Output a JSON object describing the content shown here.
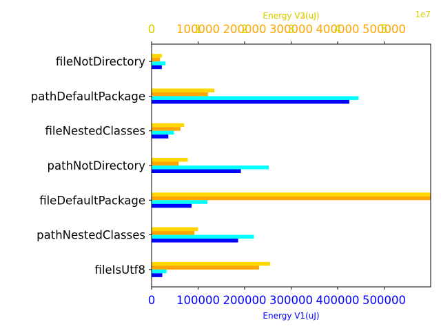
{
  "chart_data": {
    "type": "bar",
    "orientation": "horizontal",
    "categories": [
      "fileNotDirectory",
      "pathDefaultPackage",
      "fileNestedClasses",
      "pathNotDirectory",
      "fileDefaultPackage",
      "pathNestedClasses",
      "fileIsUtf8"
    ],
    "bottom_axis": {
      "label": "Energy V1(uJ)",
      "range": [
        0,
        600000
      ],
      "ticks": [
        0,
        100000,
        200000,
        300000,
        400000,
        500000
      ],
      "tick_labels": [
        "0",
        "100000",
        "200000",
        "300000",
        "400000",
        "500000"
      ],
      "color": "#0000ff",
      "series": [
        {
          "color": "#0000ff",
          "values": [
            22000,
            425000,
            36000,
            192000,
            86000,
            186000,
            23000
          ]
        },
        {
          "color": "#00ffff",
          "values": [
            30000,
            445000,
            48000,
            252000,
            120000,
            220000,
            32000
          ]
        }
      ]
    },
    "middle_axis": {
      "label": "Energy V2(uJ)",
      "range": [
        0,
        600000
      ],
      "ticks": [
        0,
        100000,
        200000,
        300000,
        400000,
        500000
      ],
      "tick_labels": [
        "0",
        "100000",
        "200000",
        "300000",
        "400000",
        "500000"
      ],
      "color": "#ffa500",
      "series": [
        {
          "color": "#ffa500",
          "values": [
            18000,
            121000,
            62000,
            58000,
            600000,
            92000,
            231000
          ]
        }
      ]
    },
    "top_axis": {
      "label": "Energy V3(uJ)",
      "range": [
        0,
        6
      ],
      "ticks": [
        0,
        1,
        2,
        3,
        4,
        5
      ],
      "tick_labels": [
        "0",
        "1",
        "2",
        "3",
        "4",
        "5"
      ],
      "offset_label": "1e7",
      "color": "#d4d400",
      "series": [
        {
          "color": "#ffd700",
          "values": [
            0.22,
            1.35,
            0.7,
            0.78,
            6,
            1.0,
            2.55
          ]
        }
      ]
    },
    "grid": false,
    "legend": "none"
  }
}
